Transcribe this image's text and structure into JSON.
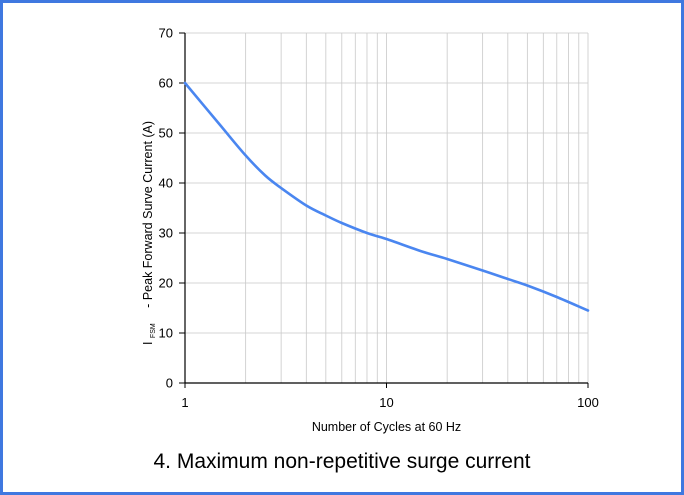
{
  "chart_data": {
    "type": "line",
    "caption": "4. Maximum non-repetitive surge current",
    "xlabel": "Number of Cycles at 60 Hz",
    "ylabel": {
      "symbol": "I",
      "subscript": "FSM",
      "text": "- Peak Forward Surve Current (A)"
    },
    "x_scale": "log",
    "xlim": [
      1,
      100
    ],
    "ylim": [
      0,
      70
    ],
    "x_ticks": [
      "1",
      "10",
      "100"
    ],
    "y_ticks": [
      "0",
      "10",
      "20",
      "30",
      "40",
      "50",
      "60",
      "70"
    ],
    "grid": true,
    "line_color": "#4a86f0",
    "series": [
      {
        "x": [
          1,
          1.5,
          2,
          2.5,
          3,
          4,
          5,
          6,
          8,
          10,
          15,
          20,
          30,
          40,
          50,
          70,
          100
        ],
        "y": [
          60,
          51.5,
          45.5,
          41.5,
          39,
          35.5,
          33.5,
          32,
          30,
          28.8,
          26.3,
          24.8,
          22.5,
          20.8,
          19.5,
          17.2,
          14.5
        ]
      }
    ]
  }
}
